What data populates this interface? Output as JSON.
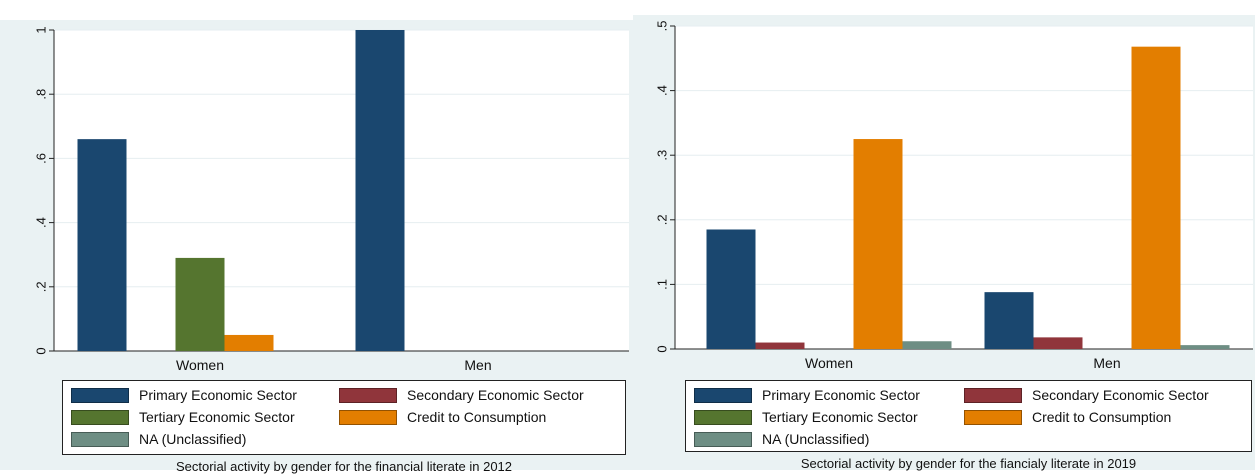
{
  "colors": {
    "primary": "#1a476f",
    "secondary": "#90353b",
    "tertiary": "#55752f",
    "credit": "#e37e00",
    "na": "#6e8e84",
    "outer_bg": "#eaf2f3"
  },
  "legend": [
    {
      "key": "primary",
      "label": "Primary Economic Sector"
    },
    {
      "key": "secondary",
      "label": "Secondary Economic Sector"
    },
    {
      "key": "tertiary",
      "label": "Tertiary Economic Sector"
    },
    {
      "key": "credit",
      "label": "Credit to Consumption"
    },
    {
      "key": "na",
      "label": "NA (Unclassified)"
    }
  ],
  "chart_data": [
    {
      "type": "bar",
      "caption": "Sectorial activity by gender for the financial literate in 2012",
      "categories": [
        "Women",
        "Men"
      ],
      "ylim": [
        0,
        1
      ],
      "yticks": [
        {
          "value": 0,
          "label": "0"
        },
        {
          "value": 0.2,
          "label": ".2"
        },
        {
          "value": 0.4,
          "label": ".4"
        },
        {
          "value": 0.6,
          "label": ".6"
        },
        {
          "value": 0.8,
          "label": ".8"
        },
        {
          "value": 1,
          "label": "1"
        }
      ],
      "grid": true,
      "legend_position": "bottom",
      "series": [
        {
          "key": "primary",
          "name": "Primary Economic Sector",
          "values": [
            0.66,
            1.0
          ]
        },
        {
          "key": "secondary",
          "name": "Secondary Economic Sector",
          "values": [
            0,
            0
          ]
        },
        {
          "key": "tertiary",
          "name": "Tertiary Economic Sector",
          "values": [
            0.29,
            0
          ]
        },
        {
          "key": "credit",
          "name": "Credit to Consumption",
          "values": [
            0.05,
            0
          ]
        },
        {
          "key": "na",
          "name": "NA (Unclassified)",
          "values": [
            0,
            0
          ]
        }
      ]
    },
    {
      "type": "bar",
      "caption": "Sectorial activity by gender for the fiancialy literate in 2019",
      "categories": [
        "Women",
        "Men"
      ],
      "ylim": [
        0,
        0.5
      ],
      "yticks": [
        {
          "value": 0,
          "label": "0"
        },
        {
          "value": 0.1,
          "label": ".1"
        },
        {
          "value": 0.2,
          "label": ".2"
        },
        {
          "value": 0.3,
          "label": ".3"
        },
        {
          "value": 0.4,
          "label": ".4"
        },
        {
          "value": 0.5,
          "label": ".5"
        }
      ],
      "grid": true,
      "legend_position": "bottom",
      "series": [
        {
          "key": "primary",
          "name": "Primary Economic Sector",
          "values": [
            0.185,
            0.088
          ]
        },
        {
          "key": "secondary",
          "name": "Secondary Economic Sector",
          "values": [
            0.01,
            0.018
          ]
        },
        {
          "key": "tertiary",
          "name": "Tertiary Economic Sector",
          "values": [
            0,
            0
          ]
        },
        {
          "key": "credit",
          "name": "Credit to Consumption",
          "values": [
            0.325,
            0.468
          ]
        },
        {
          "key": "na",
          "name": "NA (Unclassified)",
          "values": [
            0.012,
            0.006
          ]
        }
      ]
    }
  ]
}
